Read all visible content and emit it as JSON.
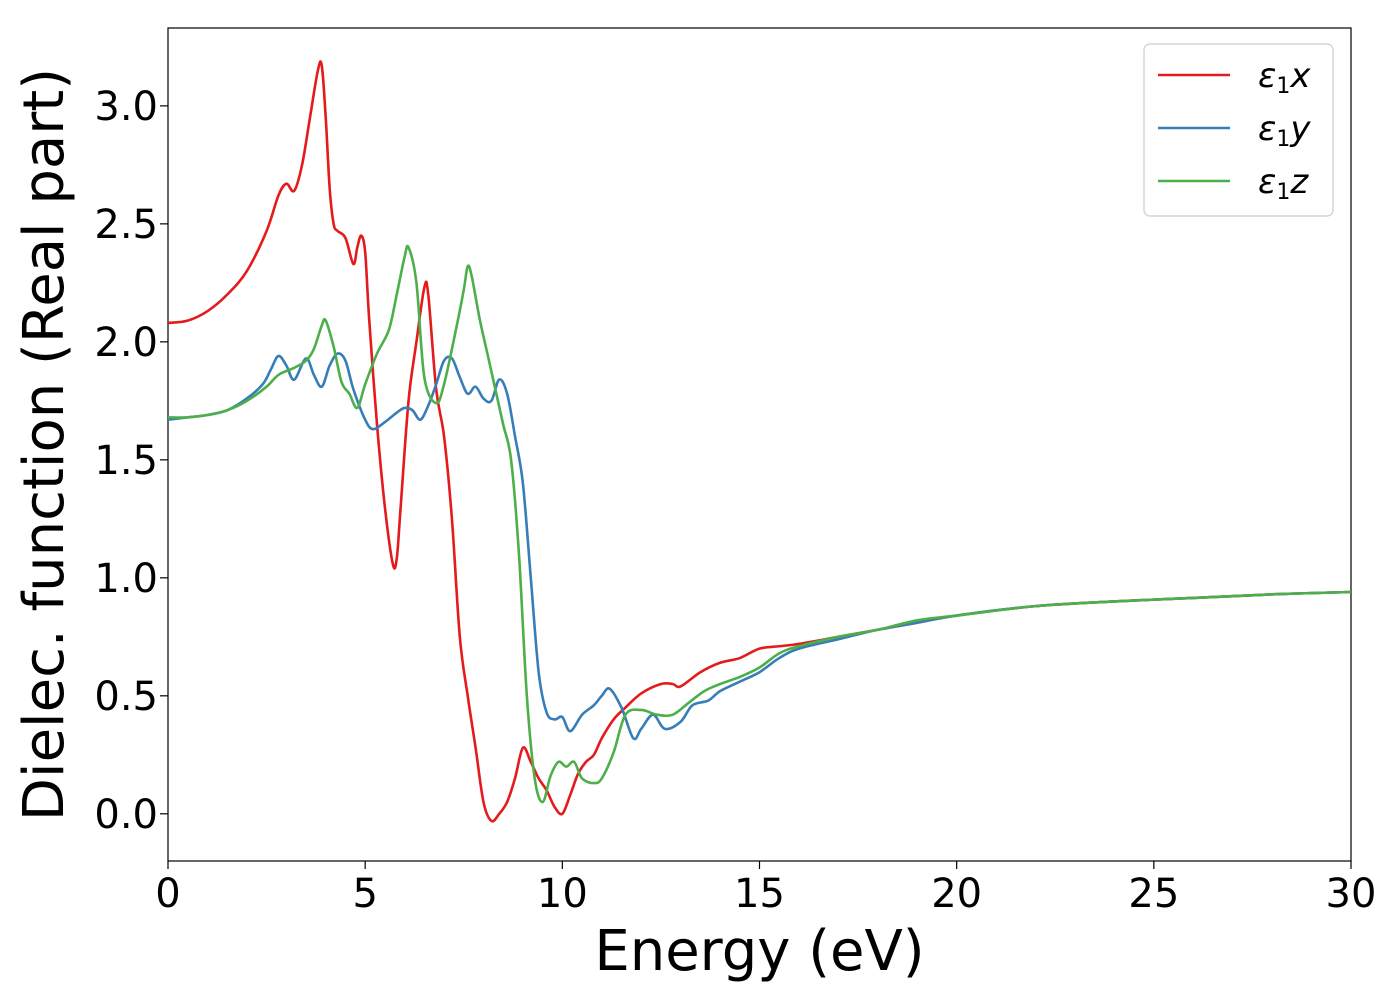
{
  "chart_data": {
    "type": "line",
    "title": "",
    "xlabel": "Energy (eV)",
    "ylabel": "Dielec. function (Real part)",
    "xlim": [
      0,
      30
    ],
    "ylim": [
      -0.2,
      3.33
    ],
    "xticks": [
      0,
      5,
      10,
      15,
      20,
      25,
      30
    ],
    "xtick_labels": [
      "0",
      "5",
      "10",
      "15",
      "20",
      "25",
      "30"
    ],
    "yticks": [
      0.0,
      0.5,
      1.0,
      1.5,
      2.0,
      2.5,
      3.0
    ],
    "ytick_labels": [
      "0.0",
      "0.5",
      "1.0",
      "1.5",
      "2.0",
      "2.5",
      "3.0"
    ],
    "grid": false,
    "legend_position": "top-right",
    "series": [
      {
        "name": "ε1x",
        "legend_symbol": "ε",
        "legend_sub": "1",
        "legend_var": "x",
        "color": "#e41a1c",
        "x": [
          0,
          0.5,
          1,
          1.5,
          2,
          2.5,
          2.8,
          3.0,
          3.2,
          3.4,
          3.6,
          3.8,
          3.9,
          4.0,
          4.1,
          4.2,
          4.3,
          4.5,
          4.7,
          4.8,
          4.9,
          5.0,
          5.1,
          5.3,
          5.5,
          5.7,
          5.8,
          5.9,
          6.1,
          6.3,
          6.5,
          6.6,
          6.8,
          7.0,
          7.2,
          7.4,
          7.6,
          7.8,
          8.0,
          8.2,
          8.4,
          8.6,
          8.8,
          9.0,
          9.2,
          9.4,
          9.6,
          9.8,
          10.0,
          10.2,
          10.4,
          10.6,
          10.8,
          11.0,
          11.3,
          11.6,
          12.0,
          12.5,
          12.8,
          13.0,
          13.5,
          14.0,
          14.5,
          15.0,
          15.5,
          16.0,
          17.0,
          18.0,
          19.0,
          20.0,
          22.0,
          24.0,
          26.0,
          28.0,
          30.0
        ],
        "y": [
          2.08,
          2.09,
          2.13,
          2.2,
          2.3,
          2.47,
          2.62,
          2.67,
          2.64,
          2.75,
          2.95,
          3.15,
          3.17,
          2.95,
          2.65,
          2.5,
          2.47,
          2.44,
          2.33,
          2.4,
          2.45,
          2.38,
          2.1,
          1.65,
          1.3,
          1.06,
          1.08,
          1.3,
          1.75,
          2.0,
          2.23,
          2.2,
          1.8,
          1.6,
          1.25,
          0.75,
          0.5,
          0.28,
          0.05,
          -0.03,
          0.0,
          0.05,
          0.15,
          0.28,
          0.22,
          0.15,
          0.1,
          0.03,
          0.0,
          0.08,
          0.17,
          0.22,
          0.25,
          0.32,
          0.4,
          0.45,
          0.51,
          0.55,
          0.55,
          0.54,
          0.6,
          0.64,
          0.66,
          0.7,
          0.71,
          0.72,
          0.75,
          0.78,
          0.81,
          0.84,
          0.88,
          0.9,
          0.915,
          0.93,
          0.94
        ]
      },
      {
        "name": "ε1y",
        "legend_symbol": "ε",
        "legend_sub": "1",
        "legend_var": "y",
        "color": "#377eb8",
        "x": [
          0,
          0.5,
          1,
          1.5,
          2,
          2.4,
          2.6,
          2.8,
          3.0,
          3.2,
          3.5,
          3.7,
          3.9,
          4.1,
          4.3,
          4.5,
          4.7,
          5.0,
          5.2,
          5.5,
          5.8,
          6.0,
          6.2,
          6.4,
          6.6,
          6.8,
          7.0,
          7.2,
          7.4,
          7.6,
          7.8,
          8.0,
          8.2,
          8.4,
          8.6,
          8.8,
          9.0,
          9.2,
          9.4,
          9.6,
          9.8,
          10.0,
          10.2,
          10.5,
          10.8,
          11.0,
          11.2,
          11.5,
          11.8,
          12.0,
          12.3,
          12.6,
          13.0,
          13.3,
          13.7,
          14.0,
          14.5,
          15.0,
          15.5,
          16.0,
          17.0,
          18.0,
          19.0,
          20.0,
          22.0,
          24.0,
          26.0,
          28.0,
          30.0
        ],
        "y": [
          1.67,
          1.68,
          1.69,
          1.71,
          1.76,
          1.82,
          1.88,
          1.94,
          1.9,
          1.84,
          1.93,
          1.86,
          1.81,
          1.9,
          1.95,
          1.92,
          1.8,
          1.67,
          1.63,
          1.66,
          1.7,
          1.72,
          1.71,
          1.67,
          1.73,
          1.82,
          1.92,
          1.93,
          1.85,
          1.78,
          1.81,
          1.76,
          1.75,
          1.84,
          1.78,
          1.6,
          1.4,
          1.0,
          0.6,
          0.43,
          0.4,
          0.41,
          0.35,
          0.42,
          0.46,
          0.5,
          0.53,
          0.45,
          0.32,
          0.36,
          0.42,
          0.36,
          0.39,
          0.46,
          0.48,
          0.52,
          0.56,
          0.6,
          0.66,
          0.7,
          0.74,
          0.78,
          0.81,
          0.84,
          0.88,
          0.9,
          0.915,
          0.93,
          0.94
        ]
      },
      {
        "name": "ε1z",
        "legend_symbol": "ε",
        "legend_sub": "1",
        "legend_var": "z",
        "color": "#4daf4a",
        "x": [
          0,
          0.5,
          1,
          1.5,
          2,
          2.5,
          2.8,
          3.2,
          3.5,
          3.7,
          3.9,
          4.0,
          4.2,
          4.4,
          4.6,
          4.8,
          5.0,
          5.3,
          5.6,
          5.8,
          6.0,
          6.1,
          6.3,
          6.5,
          6.8,
          7.0,
          7.3,
          7.5,
          7.6,
          7.7,
          7.9,
          8.1,
          8.3,
          8.5,
          8.7,
          8.9,
          9.1,
          9.3,
          9.5,
          9.7,
          9.9,
          10.1,
          10.3,
          10.5,
          10.8,
          11.0,
          11.3,
          11.6,
          12.0,
          12.4,
          12.8,
          13.2,
          13.6,
          14.0,
          14.5,
          15.0,
          15.5,
          16.0,
          17.0,
          18.0,
          19.0,
          20.0,
          22.0,
          24.0,
          26.0,
          28.0,
          30.0
        ],
        "y": [
          1.68,
          1.68,
          1.69,
          1.71,
          1.75,
          1.81,
          1.86,
          1.89,
          1.92,
          1.97,
          2.07,
          2.09,
          1.98,
          1.83,
          1.78,
          1.72,
          1.82,
          1.95,
          2.05,
          2.2,
          2.36,
          2.4,
          2.25,
          1.85,
          1.74,
          1.82,
          2.05,
          2.22,
          2.32,
          2.28,
          2.1,
          1.95,
          1.8,
          1.65,
          1.5,
          1.1,
          0.5,
          0.15,
          0.05,
          0.16,
          0.22,
          0.2,
          0.22,
          0.15,
          0.13,
          0.15,
          0.26,
          0.42,
          0.44,
          0.42,
          0.42,
          0.47,
          0.52,
          0.55,
          0.58,
          0.62,
          0.68,
          0.71,
          0.75,
          0.78,
          0.82,
          0.84,
          0.88,
          0.9,
          0.915,
          0.93,
          0.94
        ]
      }
    ]
  }
}
